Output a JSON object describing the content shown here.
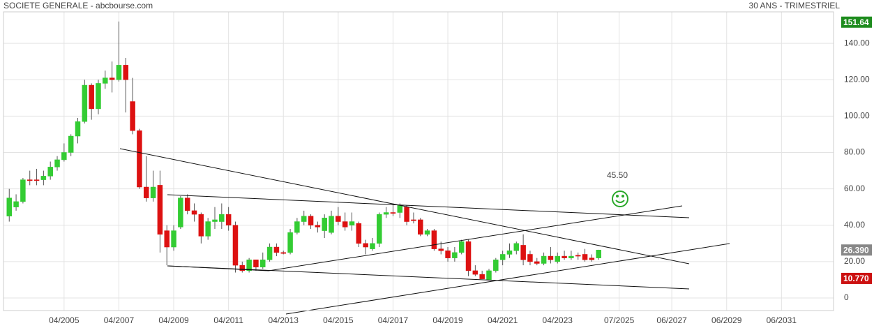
{
  "chart_data": {
    "type": "candlestick",
    "title": "SOCIETE GENERALE - abcbourse.com",
    "subtitle": "30 ANS - TRIMESTRIEL",
    "annotation": "45.50",
    "up_color": "#33cc33",
    "down_color": "#dd1111",
    "grid": true,
    "x": [
      2003.25,
      2003.5,
      2003.75,
      2004,
      2004.25,
      2004.5,
      2004.75,
      2005,
      2005.25,
      2005.5,
      2005.75,
      2006,
      2006.25,
      2006.5,
      2006.75,
      2007,
      2007.25,
      2007.5,
      2007.75,
      2008,
      2008.25,
      2008.5,
      2008.75,
      2009,
      2009.25,
      2009.5,
      2009.75,
      2010,
      2010.25,
      2010.5,
      2010.75,
      2011,
      2011.25,
      2011.5,
      2011.75,
      2012,
      2012.25,
      2012.5,
      2012.75,
      2013,
      2013.25,
      2013.5,
      2013.75,
      2014,
      2014.25,
      2014.5,
      2014.75,
      2015,
      2015.25,
      2015.5,
      2015.75,
      2016,
      2016.25,
      2016.5,
      2016.75,
      2017,
      2017.25,
      2017.5,
      2017.75,
      2018,
      2018.25,
      2018.5,
      2018.75,
      2019,
      2019.25,
      2019.5,
      2019.75,
      2020,
      2020.25,
      2020.5,
      2020.75,
      2021,
      2021.25,
      2021.5,
      2021.75,
      2022,
      2022.25,
      2022.5,
      2022.75,
      2023,
      2023.25,
      2023.5,
      2023.75,
      2024,
      2024.25,
      2024.5,
      2024.75
    ],
    "open": [
      45,
      50,
      53,
      65,
      65,
      65,
      67,
      72,
      76,
      80,
      89,
      97,
      117,
      104,
      118,
      121,
      120,
      128,
      108,
      92,
      61,
      55,
      62,
      37,
      28,
      39,
      55,
      48,
      46,
      34,
      42,
      42,
      46,
      40,
      18,
      15,
      21,
      17,
      21,
      28,
      25,
      25,
      36,
      42,
      45,
      40,
      37,
      36,
      45,
      42,
      40,
      41,
      30,
      27,
      30,
      46,
      47,
      47,
      50,
      43,
      43,
      35,
      37,
      27,
      26,
      22,
      25,
      31,
      15,
      13,
      10,
      15,
      21,
      24,
      26,
      29,
      24,
      20,
      19,
      23,
      20,
      23,
      22,
      23.5,
      24,
      22,
      22
    ],
    "high": [
      60,
      57,
      66,
      70,
      71,
      70,
      75,
      78,
      85,
      90,
      99,
      120,
      118,
      120,
      125,
      130,
      152,
      132,
      121,
      93,
      78,
      70,
      70,
      40,
      40,
      56,
      57,
      52,
      47,
      44,
      50,
      52,
      50,
      42,
      20,
      22,
      21,
      25,
      30,
      30,
      26,
      38,
      44,
      48,
      46,
      42,
      46,
      48,
      50,
      47,
      47,
      42,
      32,
      33,
      47,
      50,
      52,
      52,
      51,
      47,
      44,
      38,
      38,
      31,
      28,
      28,
      32,
      32,
      18,
      15,
      16,
      22,
      26,
      30,
      31,
      35,
      26,
      22,
      25,
      28,
      25,
      26,
      26,
      25,
      27,
      24,
      26.5
    ],
    "low": [
      42,
      48,
      52,
      62,
      62,
      62,
      65,
      70,
      75,
      78,
      85,
      96,
      98,
      101,
      115,
      113,
      119,
      102,
      90,
      60,
      53,
      53,
      25,
      18,
      26,
      38,
      46,
      42,
      30,
      32,
      38,
      38,
      37,
      14,
      14,
      14,
      15,
      16,
      20,
      23,
      24,
      24,
      35,
      40,
      38,
      36,
      33,
      35,
      40,
      37,
      37,
      28,
      24,
      26,
      28,
      44,
      45,
      44,
      40,
      41,
      34,
      34,
      26,
      24,
      20,
      20,
      24,
      12,
      12,
      10.77,
      10,
      14,
      18,
      22,
      24,
      18,
      18,
      18,
      18,
      19,
      19,
      21,
      21,
      21,
      20,
      20,
      21
    ],
    "close": [
      55,
      53,
      65,
      64.5,
      64.5,
      67,
      72,
      76,
      80,
      89,
      97,
      117,
      104,
      118,
      121,
      120,
      128,
      120,
      92,
      61,
      55,
      61,
      35,
      28,
      37,
      55,
      48,
      46,
      34,
      42,
      43,
      46,
      40,
      18,
      15,
      21,
      17,
      21,
      28,
      25,
      24.5,
      36,
      42,
      45,
      40,
      39,
      44,
      45,
      42,
      39,
      42,
      30,
      28,
      30,
      46,
      47,
      46.5,
      51,
      42,
      42.5,
      35,
      37,
      27,
      26,
      22,
      25,
      31,
      15,
      13,
      10.5,
      15,
      21,
      24,
      26,
      30,
      21,
      20,
      19,
      23,
      21,
      23,
      22,
      23,
      23,
      21,
      21,
      26.39
    ],
    "xlim": [
      2003.04,
      2033.32
    ],
    "xticks": [
      {
        "value": 2005.25,
        "label": "04/2005"
      },
      {
        "value": 2007.25,
        "label": "04/2007"
      },
      {
        "value": 2009.25,
        "label": "04/2009"
      },
      {
        "value": 2011.25,
        "label": "04/2011"
      },
      {
        "value": 2013.25,
        "label": "04/2013"
      },
      {
        "value": 2015.25,
        "label": "04/2015"
      },
      {
        "value": 2017.25,
        "label": "04/2017"
      },
      {
        "value": 2019.25,
        "label": "04/2019"
      },
      {
        "value": 2021.25,
        "label": "04/2021"
      },
      {
        "value": 2023.25,
        "label": "04/2023"
      },
      {
        "value": 2025.5,
        "label": "07/2025"
      },
      {
        "value": 2027.42,
        "label": "06/2027"
      },
      {
        "value": 2029.42,
        "label": "06/2029"
      },
      {
        "value": 2031.42,
        "label": "06/2031"
      }
    ],
    "ylim": [
      -6.9,
      157.3
    ],
    "yticks": [
      0,
      {
        "value": 20,
        "label": "20.00"
      },
      {
        "value": 40,
        "label": "40.00"
      },
      {
        "value": 60,
        "label": "60.00"
      },
      {
        "value": 80,
        "label": "80.00"
      },
      {
        "value": 100,
        "label": "100.00"
      },
      {
        "value": 120,
        "label": "120.00"
      },
      {
        "value": 140,
        "label": "140.00"
      }
    ],
    "price_markers": [
      {
        "value": 151.64,
        "color": "#1e8c1e"
      },
      {
        "value": 26.39,
        "value_label": "26.390",
        "color": "#888888"
      },
      {
        "value": 10.77,
        "value_label": "10.770",
        "color": "#cc1111"
      }
    ]
  }
}
